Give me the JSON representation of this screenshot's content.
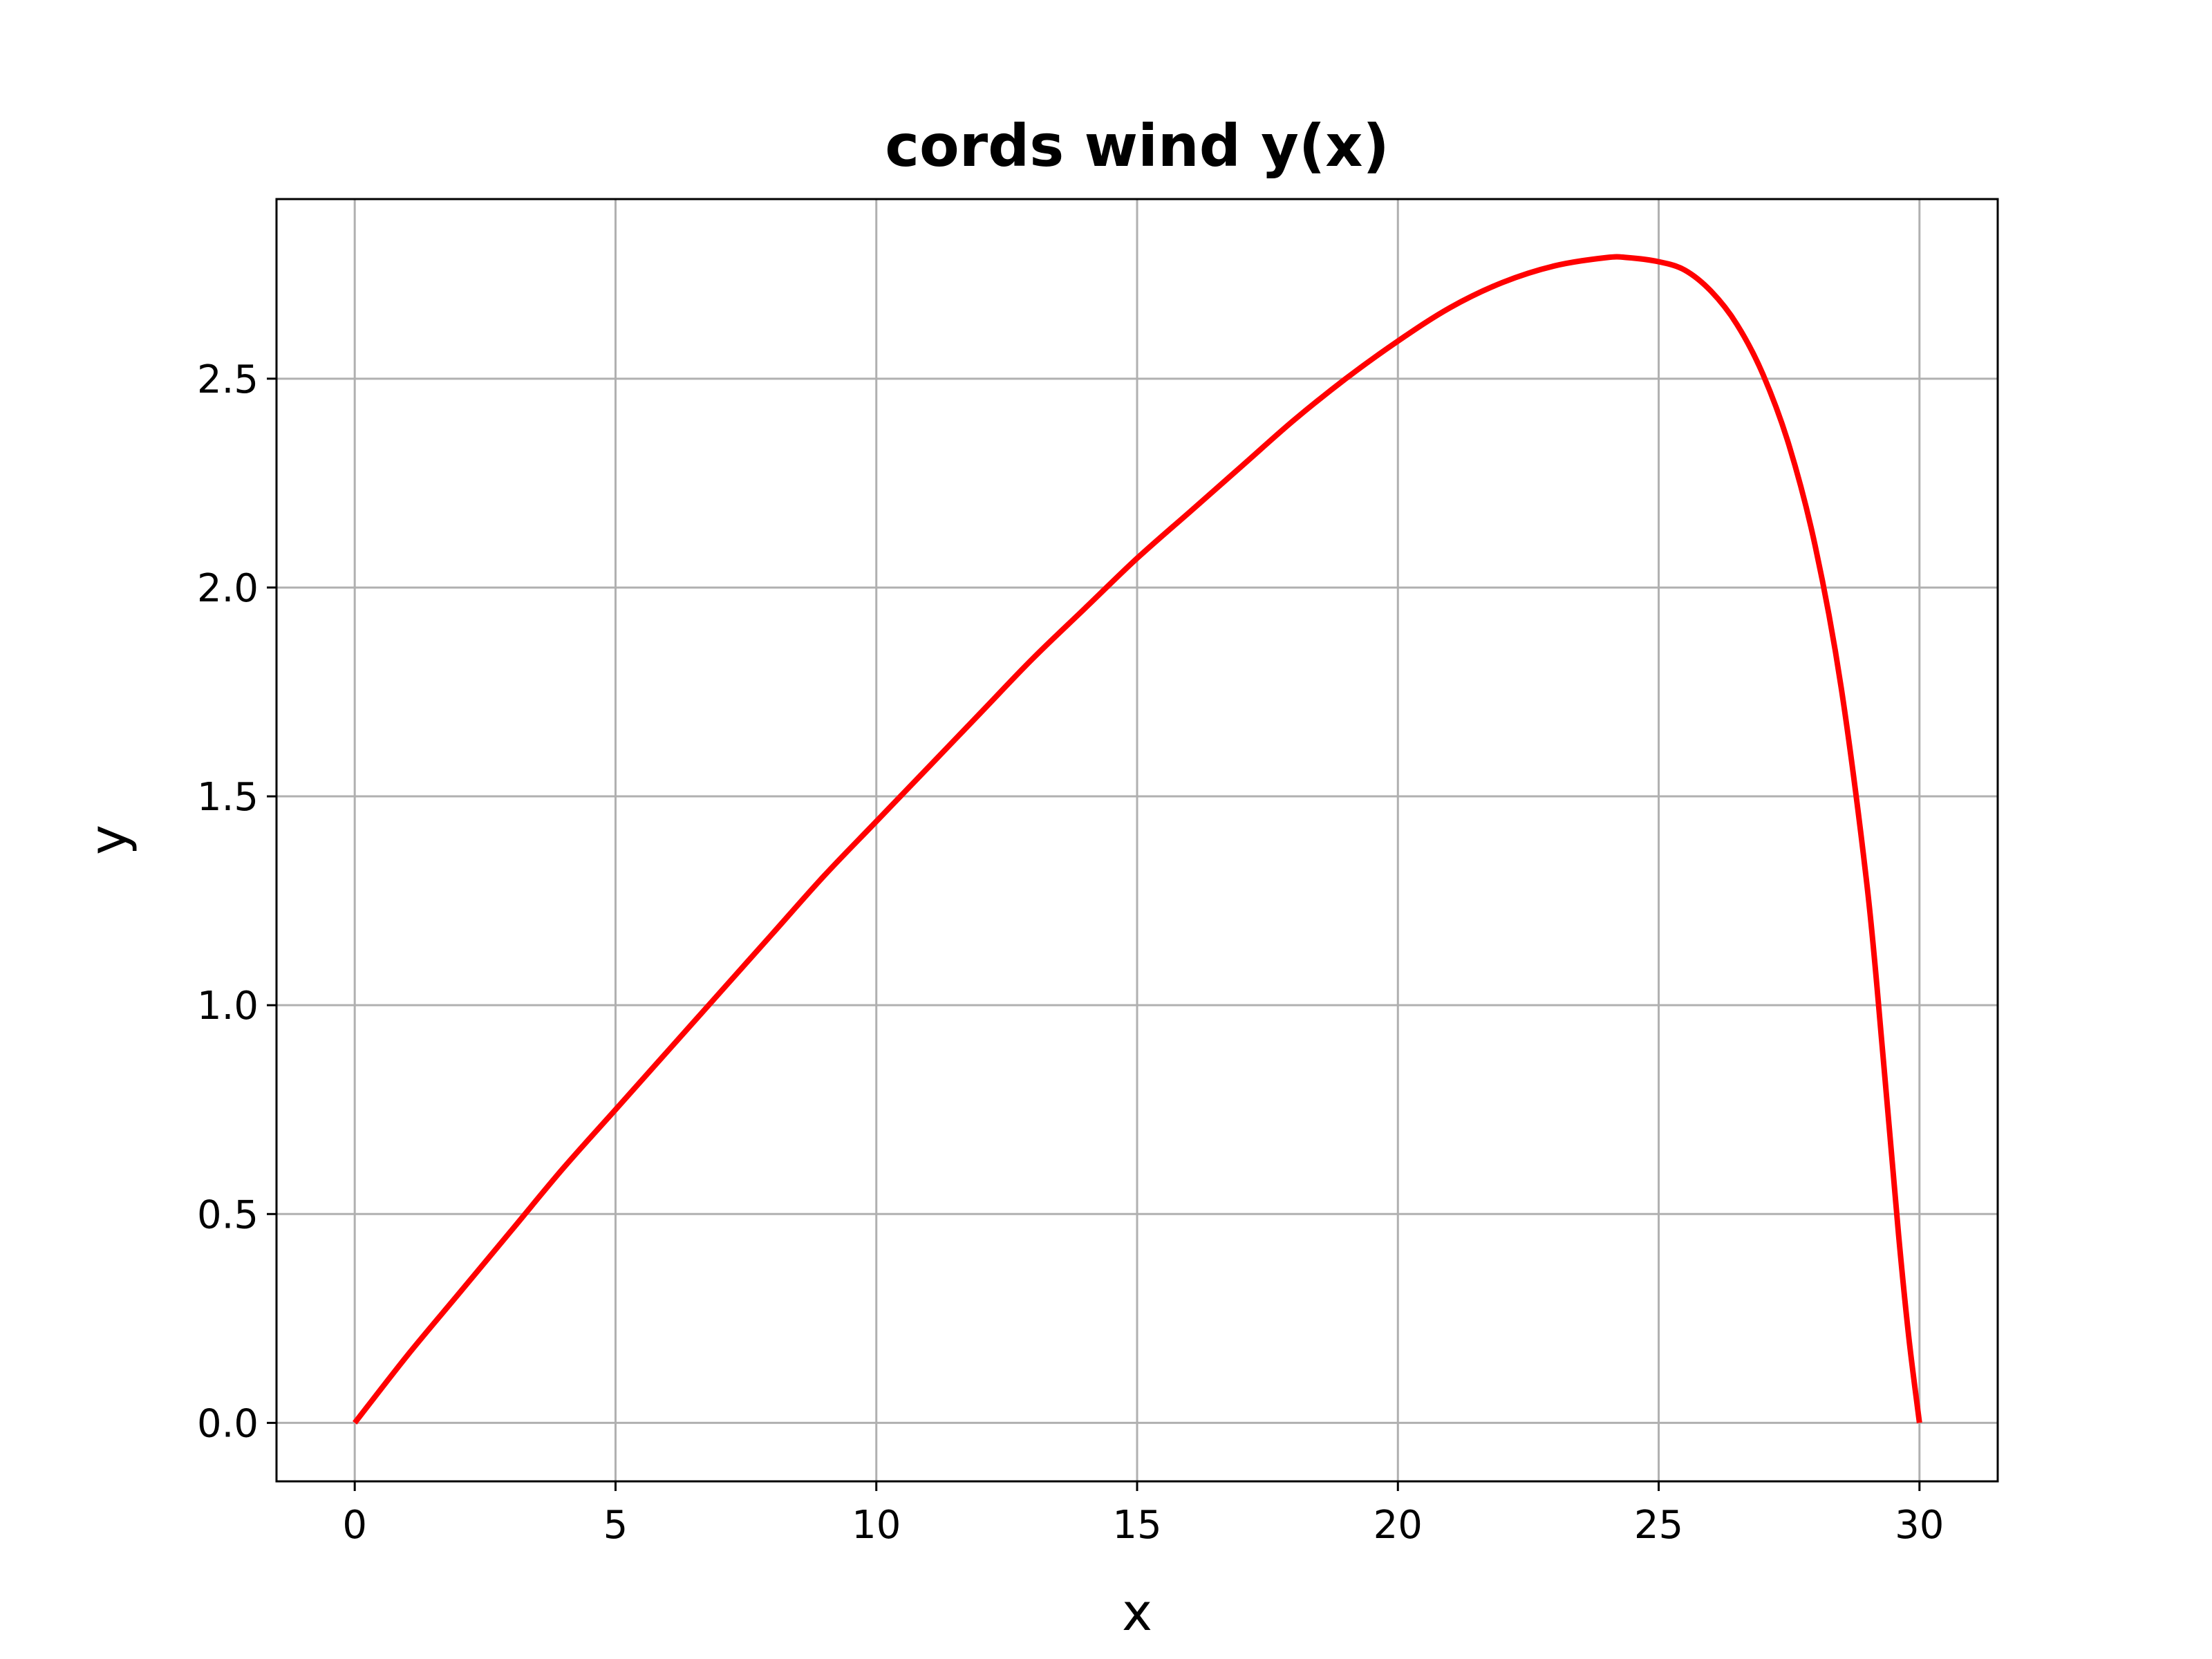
{
  "chart_data": {
    "type": "line",
    "title": "cords wind y(x)",
    "xlabel": "x",
    "ylabel": "y",
    "xlim": [
      -1.5,
      31.5
    ],
    "ylim": [
      -0.14,
      2.93
    ],
    "xticks": [
      0,
      5,
      10,
      15,
      20,
      25,
      30
    ],
    "xtick_labels": [
      "0",
      "5",
      "10",
      "15",
      "20",
      "25",
      "30"
    ],
    "yticks": [
      0.0,
      0.5,
      1.0,
      1.5,
      2.0,
      2.5
    ],
    "ytick_labels": [
      "0.0",
      "0.5",
      "1.0",
      "1.5",
      "2.0",
      "2.5"
    ],
    "grid": true,
    "legend": "none",
    "series": [
      {
        "color": "#ff0000",
        "x": [
          0,
          1,
          2,
          3,
          4,
          5,
          6,
          7,
          8,
          9,
          10,
          11,
          12,
          13,
          14,
          15,
          16,
          17,
          18,
          19,
          20,
          21,
          22,
          23,
          24,
          24.4,
          25,
          25.5,
          26,
          26.5,
          27,
          27.5,
          28,
          28.5,
          29,
          29.3,
          29.6,
          29.8,
          30
        ],
        "y": [
          0.0,
          0.16,
          0.31,
          0.46,
          0.61,
          0.75,
          0.89,
          1.03,
          1.17,
          1.31,
          1.44,
          1.57,
          1.7,
          1.83,
          1.95,
          2.07,
          2.18,
          2.29,
          2.4,
          2.5,
          2.59,
          2.67,
          2.73,
          2.77,
          2.79,
          2.79,
          2.78,
          2.76,
          2.71,
          2.63,
          2.51,
          2.34,
          2.1,
          1.76,
          1.28,
          0.88,
          0.45,
          0.2,
          0.0
        ]
      }
    ]
  }
}
